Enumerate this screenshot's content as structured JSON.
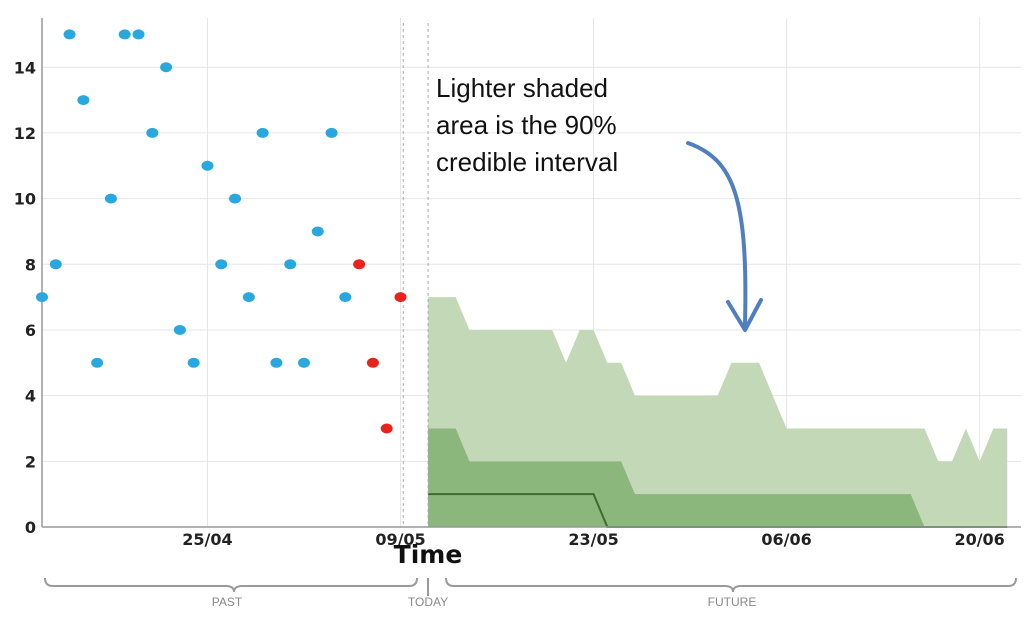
{
  "chart_data": {
    "type": "scatter",
    "xlabel": "Time",
    "ylim": [
      0,
      15.5
    ],
    "yticks": [
      0,
      2,
      4,
      6,
      8,
      10,
      12,
      14
    ],
    "xticks": [
      "25/04",
      "09/05",
      "23/05",
      "06/06",
      "20/06"
    ],
    "grid": true,
    "annotation": [
      "Lighter shaded",
      "area is the 90%",
      "credible interval"
    ],
    "periods": [
      "PAST",
      "TODAY",
      "FUTURE"
    ],
    "colors": {
      "past": "#29a8e0",
      "recent": "#e8231e",
      "band_light": "#c2d8b6",
      "band_dark": "#8bb77c",
      "median": "#3e6b33",
      "arrow": "#4f7fbf",
      "grid": "#e6e6e6"
    },
    "x_ticks_pos": [
      12,
      26,
      40,
      54,
      68
    ],
    "x_today": 28,
    "x_dotted": 26.2,
    "x_end": 71,
    "scatter_past": [
      [
        0,
        7
      ],
      [
        1,
        8
      ],
      [
        2,
        15
      ],
      [
        3,
        13
      ],
      [
        4,
        5
      ],
      [
        5,
        10
      ],
      [
        6,
        15
      ],
      [
        7,
        15
      ],
      [
        8,
        12
      ],
      [
        9,
        14
      ],
      [
        10,
        6
      ],
      [
        11,
        5
      ],
      [
        12,
        11
      ],
      [
        13,
        8
      ],
      [
        14,
        10
      ],
      [
        15,
        7
      ],
      [
        16,
        12
      ],
      [
        17,
        5
      ],
      [
        18,
        8
      ],
      [
        19,
        5
      ],
      [
        20,
        9
      ],
      [
        21,
        12
      ],
      [
        22,
        7
      ]
    ],
    "scatter_recent": [
      [
        23,
        8
      ],
      [
        24,
        5
      ],
      [
        25,
        3
      ],
      [
        26,
        7
      ]
    ],
    "band_outer_upper": [
      [
        28,
        7
      ],
      [
        30,
        7
      ],
      [
        31,
        6
      ],
      [
        37,
        6
      ],
      [
        38,
        5
      ],
      [
        39,
        6
      ],
      [
        40,
        6
      ],
      [
        41,
        5
      ],
      [
        42,
        5
      ],
      [
        43,
        4
      ],
      [
        49,
        4
      ],
      [
        50,
        5
      ],
      [
        52,
        5
      ],
      [
        54,
        3
      ],
      [
        64,
        3
      ],
      [
        65,
        2
      ],
      [
        66,
        2
      ],
      [
        67,
        3
      ],
      [
        68,
        2
      ],
      [
        69,
        3
      ],
      [
        70,
        3
      ]
    ],
    "band_inner_upper": [
      [
        28,
        3
      ],
      [
        30,
        3
      ],
      [
        31,
        2
      ],
      [
        42,
        2
      ],
      [
        43,
        1
      ],
      [
        63,
        1
      ],
      [
        64,
        0
      ]
    ],
    "median": [
      [
        28,
        1
      ],
      [
        40,
        1
      ],
      [
        41,
        0
      ],
      [
        70,
        0
      ]
    ]
  }
}
